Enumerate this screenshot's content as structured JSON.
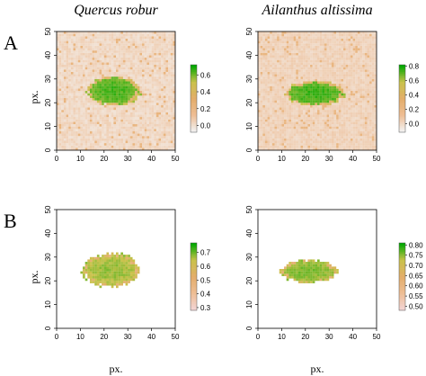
{
  "column_titles": [
    "Quercus robur",
    "Ailanthus altissima"
  ],
  "row_labels": [
    "A",
    "B"
  ],
  "axis_titles": {
    "y": "px.",
    "x": "px."
  },
  "chart_data": [
    {
      "type": "heatmap",
      "panel": "A-left",
      "column_title": "Quercus robur",
      "row_label": "A",
      "ylabel": "px.",
      "xlim": [
        0,
        50
      ],
      "ylim": [
        0,
        50
      ],
      "xticks": [
        "0",
        "10",
        "20",
        "30",
        "40",
        "50"
      ],
      "yticks": [
        "0",
        "10",
        "20",
        "30",
        "40",
        "50"
      ],
      "colorbar": {
        "ticks": [
          "0.0",
          "0.2",
          "0.4",
          "0.6"
        ],
        "min": -0.08,
        "max": 0.72,
        "colors": [
          "#f2f2f2",
          "#eebd94",
          "#e3ad6a",
          "#c9c24a",
          "#00a800"
        ]
      },
      "background": "full",
      "blob": {
        "cx": 24,
        "cy": 25,
        "rx": 11,
        "ry": 6.2,
        "value": 0.65
      }
    },
    {
      "type": "heatmap",
      "panel": "A-right",
      "column_title": "Ailanthus altissima",
      "xlim": [
        0,
        50
      ],
      "ylim": [
        0,
        50
      ],
      "xticks": [
        "0",
        "10",
        "20",
        "30",
        "40",
        "50"
      ],
      "yticks": [
        "0",
        "10",
        "20",
        "30",
        "40",
        "50"
      ],
      "colorbar": {
        "ticks": [
          "0.0",
          "0.2",
          "0.4",
          "0.6",
          "0.8"
        ],
        "min": -0.12,
        "max": 0.82,
        "colors": [
          "#f2f2f2",
          "#eebd94",
          "#e3ad6a",
          "#c9c24a",
          "#00a800"
        ]
      },
      "background": "full",
      "blob": {
        "cx": 24,
        "cy": 24,
        "rx": 12.5,
        "ry": 5.2,
        "value": 0.75
      }
    },
    {
      "type": "heatmap",
      "panel": "B-left",
      "row_label": "B",
      "ylabel": "px.",
      "xlabel": "px.",
      "xlim": [
        0,
        50
      ],
      "ylim": [
        0,
        50
      ],
      "xticks": [
        "0",
        "10",
        "20",
        "30",
        "40",
        "50"
      ],
      "yticks": [
        "0",
        "10",
        "20",
        "30",
        "40",
        "50"
      ],
      "colorbar": {
        "ticks": [
          "0.3",
          "0.4",
          "0.5",
          "0.6",
          "0.7"
        ],
        "min": 0.28,
        "max": 0.77,
        "colors": [
          "#f2d4d4",
          "#eebd94",
          "#e3ad6a",
          "#c9c24a",
          "#00a800"
        ]
      },
      "background": "none",
      "blob": {
        "cx": 23,
        "cy": 24.5,
        "rx": 12,
        "ry": 7,
        "value": 0.68
      }
    },
    {
      "type": "heatmap",
      "panel": "B-right",
      "xlabel": "px.",
      "xlim": [
        0,
        50
      ],
      "ylim": [
        0,
        50
      ],
      "xticks": [
        "0",
        "10",
        "20",
        "30",
        "40",
        "50"
      ],
      "yticks": [
        "0",
        "10",
        "20",
        "30",
        "40",
        "50"
      ],
      "colorbar": {
        "ticks": [
          "0.50",
          "0.55",
          "0.60",
          "0.65",
          "0.70",
          "0.75",
          "0.80"
        ],
        "min": 0.48,
        "max": 0.81,
        "colors": [
          "#f2d4d4",
          "#eebd94",
          "#e3ad6a",
          "#c9c24a",
          "#00a800"
        ]
      },
      "background": "none",
      "blob": {
        "cx": 21.5,
        "cy": 24,
        "rx": 12,
        "ry": 4.8,
        "value": 0.76
      }
    }
  ]
}
